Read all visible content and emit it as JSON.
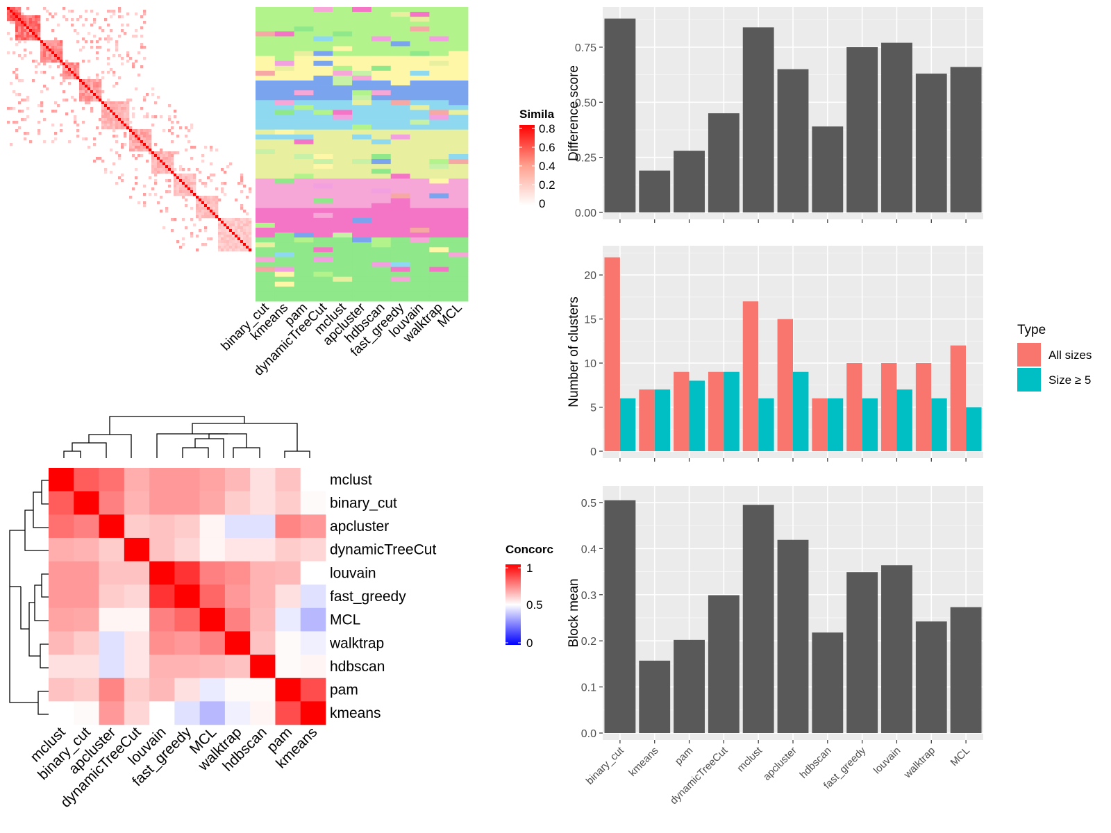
{
  "methods_order": [
    "binary_cut",
    "kmeans",
    "pam",
    "dynamicTreeCut",
    "mclust",
    "apcluster",
    "hdbscan",
    "fast_greedy",
    "louvain",
    "walktrap",
    "MCL"
  ],
  "similarity_legend": {
    "title": "Simila",
    "ticks": [
      "0.8",
      "0.6",
      "0.4",
      "0.2",
      "0"
    ]
  },
  "concordance_legend": {
    "title": "Concorc",
    "ticks": [
      "1",
      "0.5",
      "0"
    ]
  },
  "concordance_heatmap": {
    "order": [
      "mclust",
      "binary_cut",
      "apcluster",
      "dynamicTreeCut",
      "louvain",
      "fast_greedy",
      "MCL",
      "walktrap",
      "hdbscan",
      "pam",
      "kmeans"
    ],
    "matrix": [
      [
        1.0,
        0.82,
        0.78,
        0.66,
        0.7,
        0.7,
        0.68,
        0.64,
        0.56,
        0.62,
        0.5
      ],
      [
        0.82,
        1.0,
        0.75,
        0.65,
        0.7,
        0.7,
        0.67,
        0.6,
        0.56,
        0.6,
        0.51
      ],
      [
        0.78,
        0.75,
        1.0,
        0.6,
        0.62,
        0.6,
        0.52,
        0.44,
        0.44,
        0.74,
        0.7
      ],
      [
        0.66,
        0.65,
        0.6,
        1.0,
        0.62,
        0.58,
        0.52,
        0.55,
        0.55,
        0.6,
        0.58
      ],
      [
        0.7,
        0.7,
        0.62,
        0.62,
        1.0,
        0.9,
        0.75,
        0.72,
        0.65,
        0.64,
        0.5
      ],
      [
        0.7,
        0.7,
        0.6,
        0.58,
        0.9,
        1.0,
        0.8,
        0.7,
        0.65,
        0.56,
        0.44
      ],
      [
        0.68,
        0.67,
        0.52,
        0.52,
        0.75,
        0.8,
        1.0,
        0.75,
        0.64,
        0.46,
        0.36
      ],
      [
        0.64,
        0.6,
        0.44,
        0.55,
        0.72,
        0.7,
        0.75,
        1.0,
        0.62,
        0.51,
        0.47
      ],
      [
        0.56,
        0.56,
        0.44,
        0.55,
        0.65,
        0.65,
        0.64,
        0.62,
        1.0,
        0.51,
        0.52
      ],
      [
        0.62,
        0.6,
        0.74,
        0.6,
        0.64,
        0.56,
        0.46,
        0.51,
        0.51,
        1.0,
        0.85
      ],
      [
        0.5,
        0.51,
        0.7,
        0.58,
        0.5,
        0.44,
        0.36,
        0.47,
        0.52,
        0.85,
        1.0
      ]
    ]
  },
  "chart_data": [
    {
      "type": "bar",
      "ylabel": "Difference score",
      "categories": [
        "binary_cut",
        "kmeans",
        "pam",
        "dynamicTreeCut",
        "mclust",
        "apcluster",
        "hdbscan",
        "fast_greedy",
        "louvain",
        "walktrap",
        "MCL"
      ],
      "values": [
        0.88,
        0.19,
        0.28,
        0.45,
        0.84,
        0.65,
        0.39,
        0.75,
        0.77,
        0.63,
        0.66
      ],
      "ylim": [
        0,
        0.92
      ],
      "yticks": [
        "0.00",
        "0.25",
        "0.50",
        "0.75"
      ]
    },
    {
      "type": "bar",
      "ylabel": "Number of clusters",
      "categories": [
        "binary_cut",
        "kmeans",
        "pam",
        "dynamicTreeCut",
        "mclust",
        "apcluster",
        "hdbscan",
        "fast_greedy",
        "louvain",
        "walktrap",
        "MCL"
      ],
      "series": [
        {
          "name": "All sizes",
          "color": "#f8766d",
          "values": [
            22,
            7,
            9,
            9,
            17,
            15,
            6,
            10,
            10,
            10,
            12
          ]
        },
        {
          "name": "Size ≥ 5",
          "color": "#00bfc4",
          "values": [
            6,
            7,
            8,
            9,
            6,
            9,
            6,
            6,
            7,
            6,
            5
          ]
        }
      ],
      "ylim": [
        0,
        23
      ],
      "yticks": [
        "0",
        "5",
        "10",
        "15",
        "20"
      ],
      "legend": {
        "title": "Type",
        "position": "right"
      }
    },
    {
      "type": "bar",
      "ylabel": "Block mean",
      "categories": [
        "binary_cut",
        "kmeans",
        "pam",
        "dynamicTreeCut",
        "mclust",
        "apcluster",
        "hdbscan",
        "fast_greedy",
        "louvain",
        "walktrap",
        "MCL"
      ],
      "values": [
        0.505,
        0.157,
        0.202,
        0.299,
        0.495,
        0.419,
        0.218,
        0.349,
        0.364,
        0.242,
        0.273
      ],
      "ylim": [
        0,
        0.53
      ],
      "yticks": [
        "0.0",
        "0.1",
        "0.2",
        "0.3",
        "0.4",
        "0.5"
      ]
    }
  ]
}
